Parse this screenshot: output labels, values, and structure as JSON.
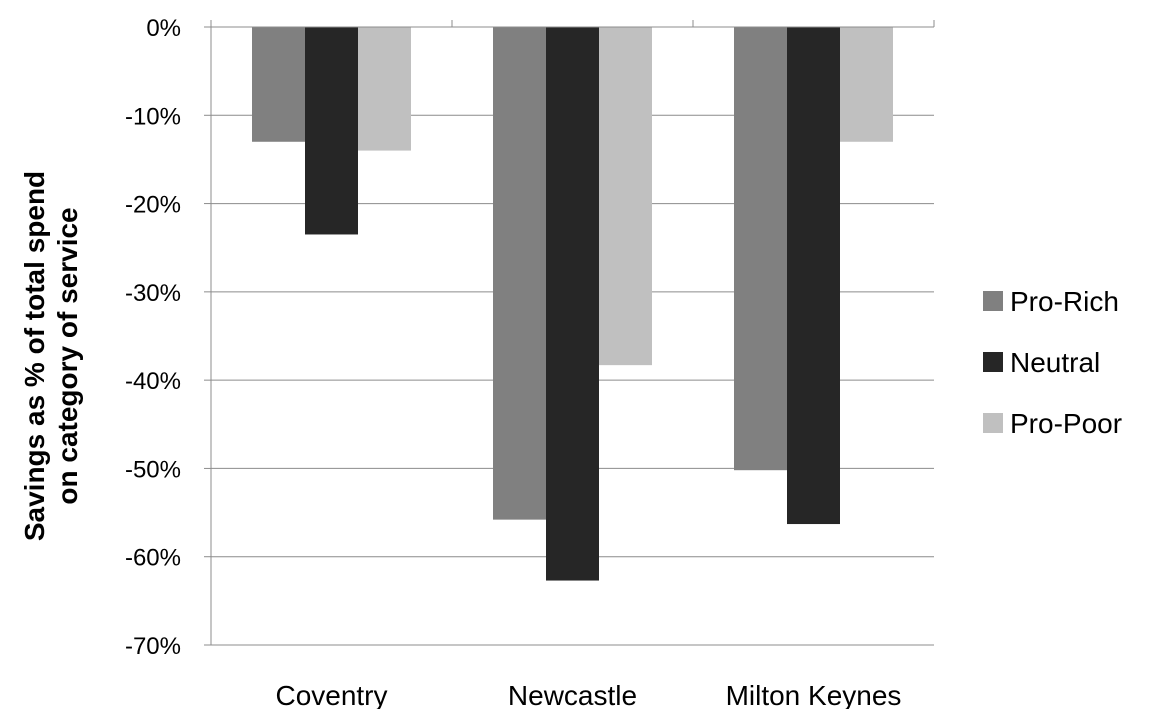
{
  "chart_data": {
    "type": "bar",
    "categories": [
      "Coventry",
      "Newcastle",
      "Milton Keynes"
    ],
    "series": [
      {
        "name": "Pro-Rich",
        "color": "#808080",
        "values": [
          -13,
          -55.8,
          -50.2
        ]
      },
      {
        "name": "Neutral",
        "color": "#262626",
        "values": [
          -23.5,
          -62.7,
          -56.3
        ]
      },
      {
        "name": "Pro-Poor",
        "color": "#c0c0c0",
        "values": [
          -14,
          -38.3,
          -13
        ]
      }
    ],
    "ylabel": [
      "Savings as % of total  spend",
      "on category of service"
    ],
    "ylim": [
      -70,
      0
    ],
    "yticks": [
      0,
      -10,
      -20,
      -30,
      -40,
      -50,
      -60,
      -70
    ],
    "ytick_labels": [
      "0%",
      "-10%",
      "-20%",
      "-30%",
      "-40%",
      "-50%",
      "-60%",
      "-70%"
    ],
    "grid": true,
    "legend": "right"
  }
}
